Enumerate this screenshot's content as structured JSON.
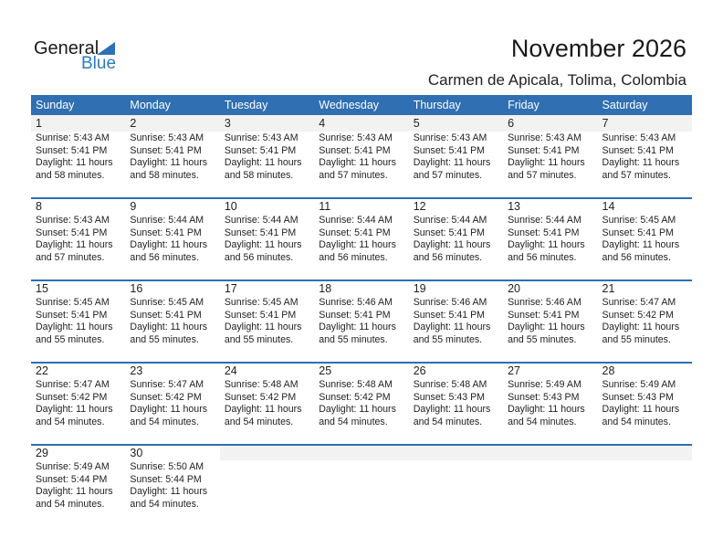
{
  "logo": {
    "text1": "General",
    "text2": "Blue"
  },
  "title": "November 2026",
  "location": "Carmen de Apicala, Tolima, Colombia",
  "colors": {
    "header": "#2f6fb2",
    "logo_blue": "#2a7bc0",
    "day_band": "#f2f2f2"
  },
  "weekdays": [
    "Sunday",
    "Monday",
    "Tuesday",
    "Wednesday",
    "Thursday",
    "Friday",
    "Saturday"
  ],
  "weeks": [
    [
      {
        "day": "1",
        "sunrise": "Sunrise: 5:43 AM",
        "sunset": "Sunset: 5:41 PM",
        "daylight1": "Daylight: 11 hours",
        "daylight2": "and 58 minutes."
      },
      {
        "day": "2",
        "sunrise": "Sunrise: 5:43 AM",
        "sunset": "Sunset: 5:41 PM",
        "daylight1": "Daylight: 11 hours",
        "daylight2": "and 58 minutes."
      },
      {
        "day": "3",
        "sunrise": "Sunrise: 5:43 AM",
        "sunset": "Sunset: 5:41 PM",
        "daylight1": "Daylight: 11 hours",
        "daylight2": "and 58 minutes."
      },
      {
        "day": "4",
        "sunrise": "Sunrise: 5:43 AM",
        "sunset": "Sunset: 5:41 PM",
        "daylight1": "Daylight: 11 hours",
        "daylight2": "and 57 minutes."
      },
      {
        "day": "5",
        "sunrise": "Sunrise: 5:43 AM",
        "sunset": "Sunset: 5:41 PM",
        "daylight1": "Daylight: 11 hours",
        "daylight2": "and 57 minutes."
      },
      {
        "day": "6",
        "sunrise": "Sunrise: 5:43 AM",
        "sunset": "Sunset: 5:41 PM",
        "daylight1": "Daylight: 11 hours",
        "daylight2": "and 57 minutes."
      },
      {
        "day": "7",
        "sunrise": "Sunrise: 5:43 AM",
        "sunset": "Sunset: 5:41 PM",
        "daylight1": "Daylight: 11 hours",
        "daylight2": "and 57 minutes."
      }
    ],
    [
      {
        "day": "8",
        "sunrise": "Sunrise: 5:43 AM",
        "sunset": "Sunset: 5:41 PM",
        "daylight1": "Daylight: 11 hours",
        "daylight2": "and 57 minutes."
      },
      {
        "day": "9",
        "sunrise": "Sunrise: 5:44 AM",
        "sunset": "Sunset: 5:41 PM",
        "daylight1": "Daylight: 11 hours",
        "daylight2": "and 56 minutes."
      },
      {
        "day": "10",
        "sunrise": "Sunrise: 5:44 AM",
        "sunset": "Sunset: 5:41 PM",
        "daylight1": "Daylight: 11 hours",
        "daylight2": "and 56 minutes."
      },
      {
        "day": "11",
        "sunrise": "Sunrise: 5:44 AM",
        "sunset": "Sunset: 5:41 PM",
        "daylight1": "Daylight: 11 hours",
        "daylight2": "and 56 minutes."
      },
      {
        "day": "12",
        "sunrise": "Sunrise: 5:44 AM",
        "sunset": "Sunset: 5:41 PM",
        "daylight1": "Daylight: 11 hours",
        "daylight2": "and 56 minutes."
      },
      {
        "day": "13",
        "sunrise": "Sunrise: 5:44 AM",
        "sunset": "Sunset: 5:41 PM",
        "daylight1": "Daylight: 11 hours",
        "daylight2": "and 56 minutes."
      },
      {
        "day": "14",
        "sunrise": "Sunrise: 5:45 AM",
        "sunset": "Sunset: 5:41 PM",
        "daylight1": "Daylight: 11 hours",
        "daylight2": "and 56 minutes."
      }
    ],
    [
      {
        "day": "15",
        "sunrise": "Sunrise: 5:45 AM",
        "sunset": "Sunset: 5:41 PM",
        "daylight1": "Daylight: 11 hours",
        "daylight2": "and 55 minutes."
      },
      {
        "day": "16",
        "sunrise": "Sunrise: 5:45 AM",
        "sunset": "Sunset: 5:41 PM",
        "daylight1": "Daylight: 11 hours",
        "daylight2": "and 55 minutes."
      },
      {
        "day": "17",
        "sunrise": "Sunrise: 5:45 AM",
        "sunset": "Sunset: 5:41 PM",
        "daylight1": "Daylight: 11 hours",
        "daylight2": "and 55 minutes."
      },
      {
        "day": "18",
        "sunrise": "Sunrise: 5:46 AM",
        "sunset": "Sunset: 5:41 PM",
        "daylight1": "Daylight: 11 hours",
        "daylight2": "and 55 minutes."
      },
      {
        "day": "19",
        "sunrise": "Sunrise: 5:46 AM",
        "sunset": "Sunset: 5:41 PM",
        "daylight1": "Daylight: 11 hours",
        "daylight2": "and 55 minutes."
      },
      {
        "day": "20",
        "sunrise": "Sunrise: 5:46 AM",
        "sunset": "Sunset: 5:41 PM",
        "daylight1": "Daylight: 11 hours",
        "daylight2": "and 55 minutes."
      },
      {
        "day": "21",
        "sunrise": "Sunrise: 5:47 AM",
        "sunset": "Sunset: 5:42 PM",
        "daylight1": "Daylight: 11 hours",
        "daylight2": "and 55 minutes."
      }
    ],
    [
      {
        "day": "22",
        "sunrise": "Sunrise: 5:47 AM",
        "sunset": "Sunset: 5:42 PM",
        "daylight1": "Daylight: 11 hours",
        "daylight2": "and 54 minutes."
      },
      {
        "day": "23",
        "sunrise": "Sunrise: 5:47 AM",
        "sunset": "Sunset: 5:42 PM",
        "daylight1": "Daylight: 11 hours",
        "daylight2": "and 54 minutes."
      },
      {
        "day": "24",
        "sunrise": "Sunrise: 5:48 AM",
        "sunset": "Sunset: 5:42 PM",
        "daylight1": "Daylight: 11 hours",
        "daylight2": "and 54 minutes."
      },
      {
        "day": "25",
        "sunrise": "Sunrise: 5:48 AM",
        "sunset": "Sunset: 5:42 PM",
        "daylight1": "Daylight: 11 hours",
        "daylight2": "and 54 minutes."
      },
      {
        "day": "26",
        "sunrise": "Sunrise: 5:48 AM",
        "sunset": "Sunset: 5:43 PM",
        "daylight1": "Daylight: 11 hours",
        "daylight2": "and 54 minutes."
      },
      {
        "day": "27",
        "sunrise": "Sunrise: 5:49 AM",
        "sunset": "Sunset: 5:43 PM",
        "daylight1": "Daylight: 11 hours",
        "daylight2": "and 54 minutes."
      },
      {
        "day": "28",
        "sunrise": "Sunrise: 5:49 AM",
        "sunset": "Sunset: 5:43 PM",
        "daylight1": "Daylight: 11 hours",
        "daylight2": "and 54 minutes."
      }
    ],
    [
      {
        "day": "29",
        "sunrise": "Sunrise: 5:49 AM",
        "sunset": "Sunset: 5:44 PM",
        "daylight1": "Daylight: 11 hours",
        "daylight2": "and 54 minutes."
      },
      {
        "day": "30",
        "sunrise": "Sunrise: 5:50 AM",
        "sunset": "Sunset: 5:44 PM",
        "daylight1": "Daylight: 11 hours",
        "daylight2": "and 54 minutes."
      },
      null,
      null,
      null,
      null,
      null
    ]
  ]
}
